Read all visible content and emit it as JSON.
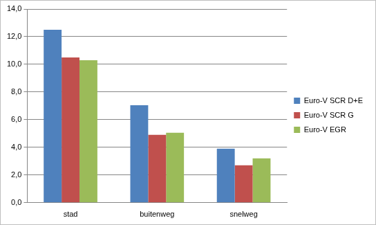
{
  "chart_data": {
    "type": "bar",
    "categories": [
      "stad",
      "buitenweg",
      "snelweg"
    ],
    "series": [
      {
        "name": "Euro-V SCR D+E",
        "color": "#4f81bd",
        "values": [
          12.5,
          7.05,
          3.9
        ]
      },
      {
        "name": "Euro-V SCR G",
        "color": "#c0504d",
        "values": [
          10.5,
          4.9,
          2.7
        ]
      },
      {
        "name": "Euro-V EGR",
        "color": "#9bbb59",
        "values": [
          10.3,
          5.05,
          3.2
        ]
      }
    ],
    "ylim": [
      0,
      14
    ],
    "yticks": [
      {
        "value": 0,
        "label": "0,0"
      },
      {
        "value": 2,
        "label": "2,0"
      },
      {
        "value": 4,
        "label": "4,0"
      },
      {
        "value": 6,
        "label": "6,0"
      },
      {
        "value": 8,
        "label": "8,0"
      },
      {
        "value": 10,
        "label": "10,0"
      },
      {
        "value": 12,
        "label": "12,0"
      },
      {
        "value": 14,
        "label": "14,0"
      }
    ],
    "grid": true,
    "legend": "right"
  }
}
